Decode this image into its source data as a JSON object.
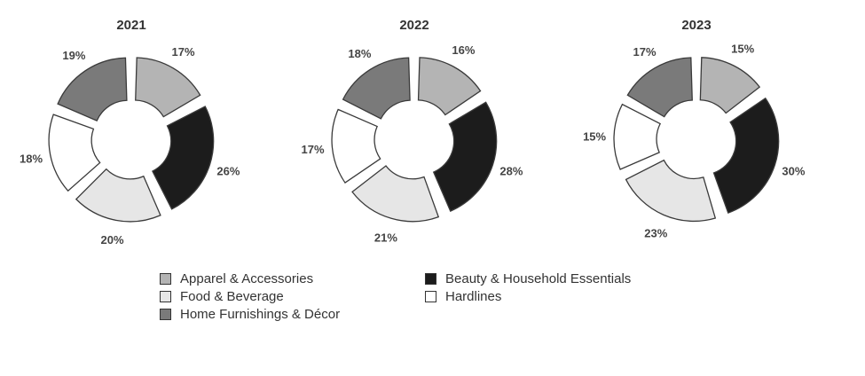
{
  "chart_data": [
    {
      "type": "donut",
      "title": "2021",
      "series": [
        {
          "name": "Apparel & Accessories",
          "value": 17,
          "label": "17%"
        },
        {
          "name": "Beauty & Household Essentials",
          "value": 26,
          "label": "26%"
        },
        {
          "name": "Food & Beverage",
          "value": 20,
          "label": "20%"
        },
        {
          "name": "Hardlines",
          "value": 18,
          "label": "18%"
        },
        {
          "name": "Home Furnishings & Décor",
          "value": 19,
          "label": "19%"
        }
      ]
    },
    {
      "type": "donut",
      "title": "2022",
      "series": [
        {
          "name": "Apparel & Accessories",
          "value": 16,
          "label": "16%"
        },
        {
          "name": "Beauty & Household Essentials",
          "value": 28,
          "label": "28%"
        },
        {
          "name": "Food & Beverage",
          "value": 21,
          "label": "21%"
        },
        {
          "name": "Hardlines",
          "value": 17,
          "label": "17%"
        },
        {
          "name": "Home Furnishings & Décor",
          "value": 18,
          "label": "18%"
        }
      ]
    },
    {
      "type": "donut",
      "title": "2023",
      "series": [
        {
          "name": "Apparel & Accessories",
          "value": 15,
          "label": "15%"
        },
        {
          "name": "Beauty & Household Essentials",
          "value": 30,
          "label": "30%"
        },
        {
          "name": "Food & Beverage",
          "value": 23,
          "label": "23%"
        },
        {
          "name": "Hardlines",
          "value": 15,
          "label": "15%"
        },
        {
          "name": "Home Furnishings & Décor",
          "value": 17,
          "label": "17%"
        }
      ]
    }
  ],
  "colors": {
    "Apparel & Accessories": "#b4b4b4",
    "Beauty & Household Essentials": "#1c1c1c",
    "Food & Beverage": "#e6e6e6",
    "Hardlines": "#ffffff",
    "Home Furnishings & Décor": "#7a7a7a"
  },
  "legend": {
    "left": [
      "Apparel & Accessories",
      "Food & Beverage",
      "Home Furnishings & Décor"
    ],
    "right": [
      "Beauty & Household Essentials",
      "Hardlines"
    ]
  }
}
